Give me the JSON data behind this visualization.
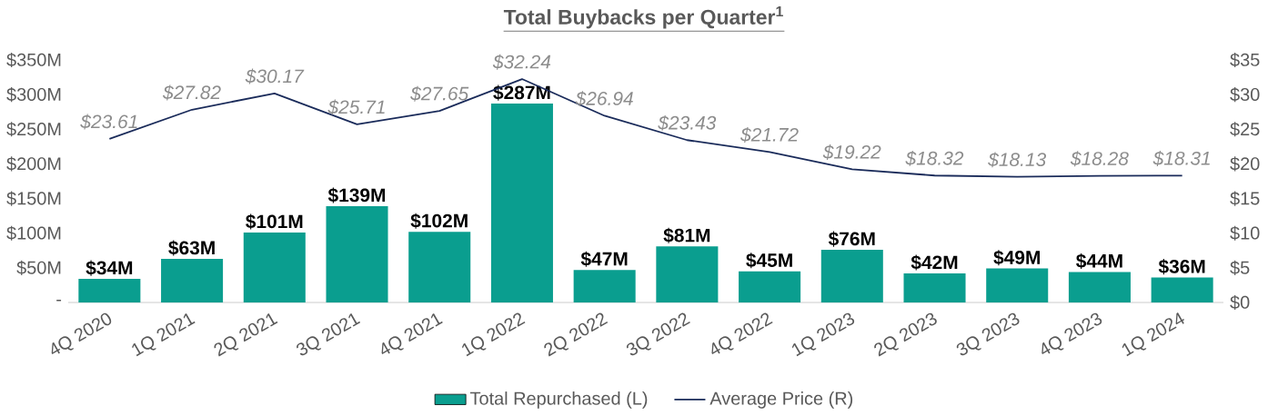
{
  "chart_data": {
    "type": "bar",
    "title": "Total Buybacks per Quarter$^{1}$",
    "categories": [
      "4Q 2020",
      "1Q 2021",
      "2Q 2021",
      "3Q 2021",
      "4Q 2021",
      "1Q 2022",
      "2Q 2022",
      "3Q 2022",
      "4Q 2022",
      "1Q 2023",
      "2Q 2023",
      "3Q 2023",
      "4Q 2023",
      "1Q 2024"
    ],
    "series": [
      {
        "name": "Total Repurchased (L)",
        "color": "#0a9e8f",
        "values": [
          34,
          63,
          101,
          139,
          102,
          287,
          47,
          81,
          45,
          76,
          42,
          49,
          44,
          36
        ],
        "value_labels": [
          "$34M",
          "$63M",
          "$101M",
          "$139M",
          "$102M",
          "$287M",
          "$47M",
          "$81M",
          "$45M",
          "$76M",
          "$42M",
          "$49M",
          "$44M",
          "$36M"
        ]
      },
      {
        "name": "Average Price (R)",
        "type": "line",
        "axis": "y2",
        "color": "#1a2b5a",
        "values": [
          23.61,
          27.82,
          30.17,
          25.71,
          27.65,
          32.24,
          26.94,
          23.43,
          21.72,
          19.22,
          18.32,
          18.13,
          18.28,
          18.31
        ],
        "value_labels": [
          "$23.61",
          "$27.82",
          "$30.17",
          "$25.71",
          "$27.65",
          "$32.24",
          "$26.94",
          "$23.43",
          "$21.72",
          "$19.22",
          "$18.32",
          "$18.13",
          "$18.28",
          "$18.31"
        ]
      }
    ],
    "ylim": [
      0,
      350
    ],
    "yticks": [
      {
        "value": 0,
        "label": "-"
      },
      {
        "value": 50,
        "label": "$50M"
      },
      {
        "value": 100,
        "label": "$100M"
      },
      {
        "value": 150,
        "label": "$150M"
      },
      {
        "value": 200,
        "label": "$200M"
      },
      {
        "value": 250,
        "label": "$250M"
      },
      {
        "value": 300,
        "label": "$300M"
      },
      {
        "value": 350,
        "label": "$350M"
      }
    ],
    "y2lim": [
      0,
      35
    ],
    "y2ticks": [
      {
        "value": 0,
        "label": "$0"
      },
      {
        "value": 5,
        "label": "$5"
      },
      {
        "value": 10,
        "label": "$10"
      },
      {
        "value": 15,
        "label": "$15"
      },
      {
        "value": 20,
        "label": "$20"
      },
      {
        "value": 25,
        "label": "$25"
      },
      {
        "value": 30,
        "label": "$30"
      },
      {
        "value": 35,
        "label": "$35"
      }
    ],
    "legend": "bottom"
  }
}
